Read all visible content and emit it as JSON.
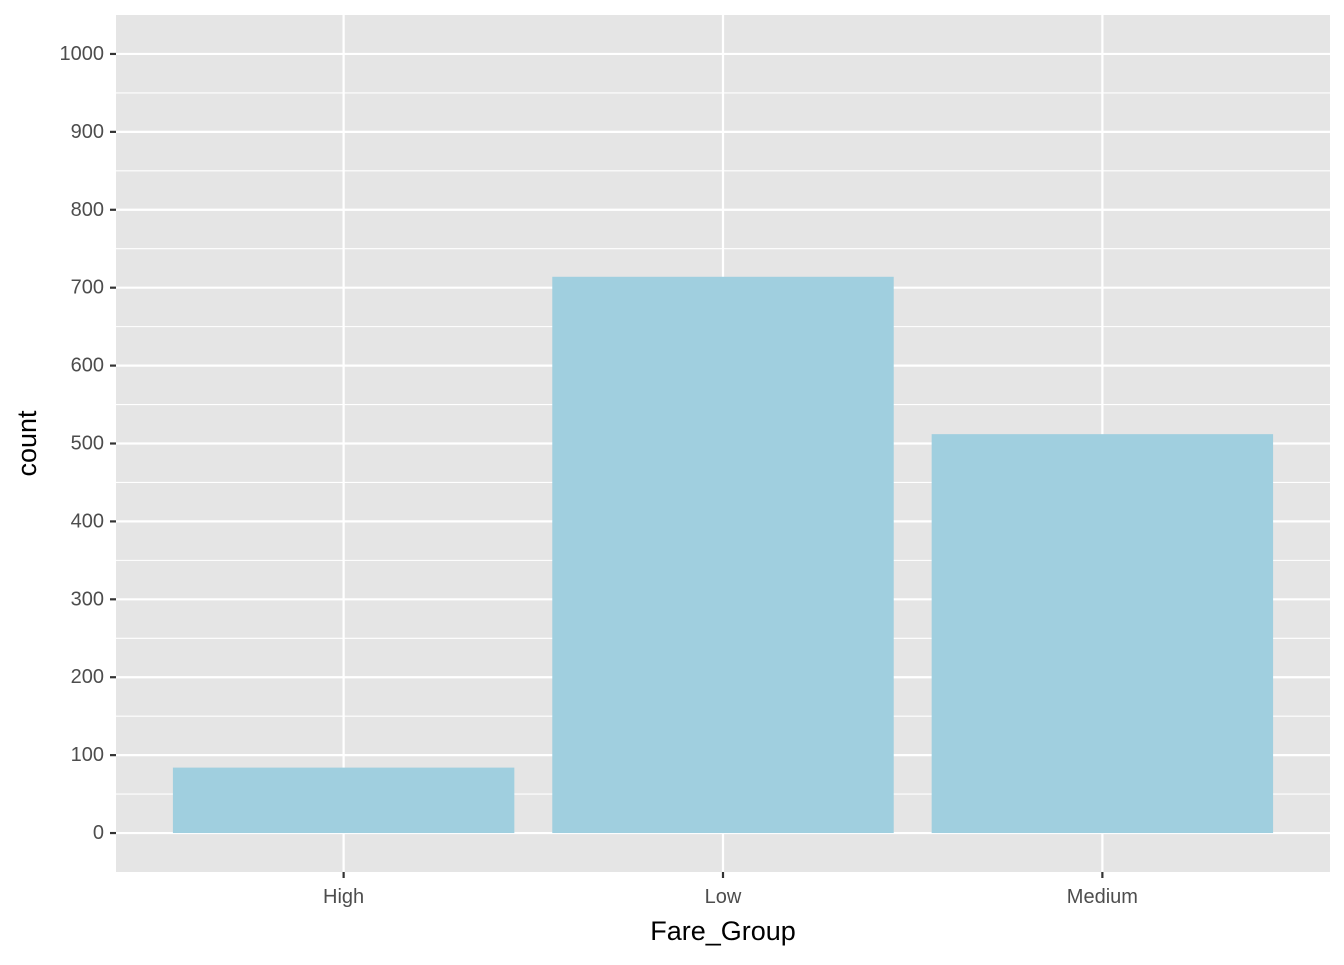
{
  "chart_data": {
    "type": "bar",
    "title": "",
    "xlabel": "Fare_Group",
    "ylabel": "count",
    "categories": [
      "High",
      "Low",
      "Medium"
    ],
    "values": [
      84,
      714,
      512
    ],
    "ylim": [
      -50,
      1050
    ],
    "yticks": [
      0,
      100,
      200,
      300,
      400,
      500,
      600,
      700,
      800,
      900,
      1000
    ],
    "ytick_labels": [
      "0",
      "100",
      "200",
      "300",
      "400",
      "500",
      "600",
      "700",
      "800",
      "900",
      "1000"
    ],
    "grid": true,
    "legend": "none",
    "colors": {
      "panel_background": "#e5e5e5",
      "grid_line": "#ffffff",
      "bar_fill": "#a0cfdf",
      "tick_mark": "#333333",
      "tick_label": "#4d4d4d",
      "axis_title": "#000000"
    }
  }
}
